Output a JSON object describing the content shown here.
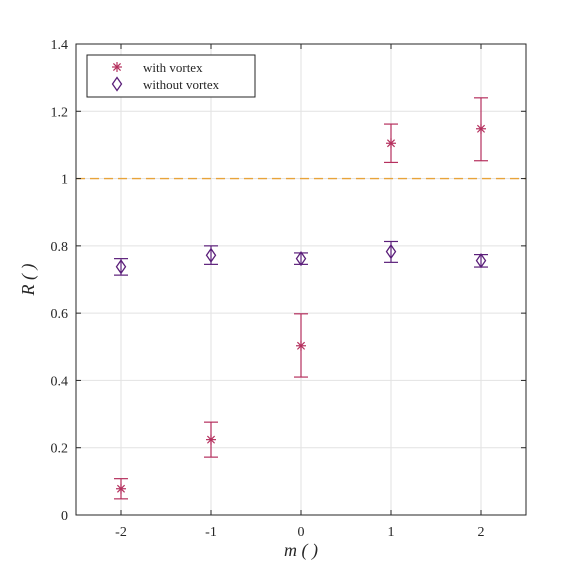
{
  "chart_data": {
    "type": "scatter",
    "xlabel": "m ( )",
    "ylabel": "R ( )",
    "xlim": [
      -2.5,
      2.5
    ],
    "ylim": [
      0,
      1.4
    ],
    "xticks": [
      -2,
      -1,
      0,
      1,
      2
    ],
    "xtick_labels": [
      "-2",
      "-1",
      "0",
      "1",
      "2"
    ],
    "yticks": [
      0,
      0.2,
      0.4,
      0.6,
      0.8,
      1,
      1.2,
      1.4
    ],
    "ytick_labels": [
      "0",
      "0.2",
      "0.4",
      "0.6",
      "0.8",
      "1",
      "1.2",
      "1.4"
    ],
    "grid": true,
    "legend_position": "top-left",
    "reference_line": {
      "y": 1,
      "style": "dashed",
      "color": "#e8a33a"
    },
    "series": [
      {
        "name": "with vortex",
        "marker": "asterisk",
        "color": "#b5305e",
        "x": [
          -2,
          -1,
          0,
          1,
          2
        ],
        "y": [
          0.078,
          0.224,
          0.503,
          1.105,
          1.148
        ],
        "err_low": [
          0.048,
          0.172,
          0.41,
          1.048,
          1.053
        ],
        "err_high": [
          0.108,
          0.276,
          0.598,
          1.162,
          1.24
        ]
      },
      {
        "name": "without vortex",
        "marker": "diamond",
        "color": "#5b1f7a",
        "x": [
          -2,
          -1,
          0,
          1,
          2
        ],
        "y": [
          0.738,
          0.772,
          0.762,
          0.783,
          0.756
        ],
        "err_low": [
          0.713,
          0.745,
          0.745,
          0.751,
          0.737
        ],
        "err_high": [
          0.762,
          0.8,
          0.779,
          0.813,
          0.774
        ]
      }
    ]
  }
}
